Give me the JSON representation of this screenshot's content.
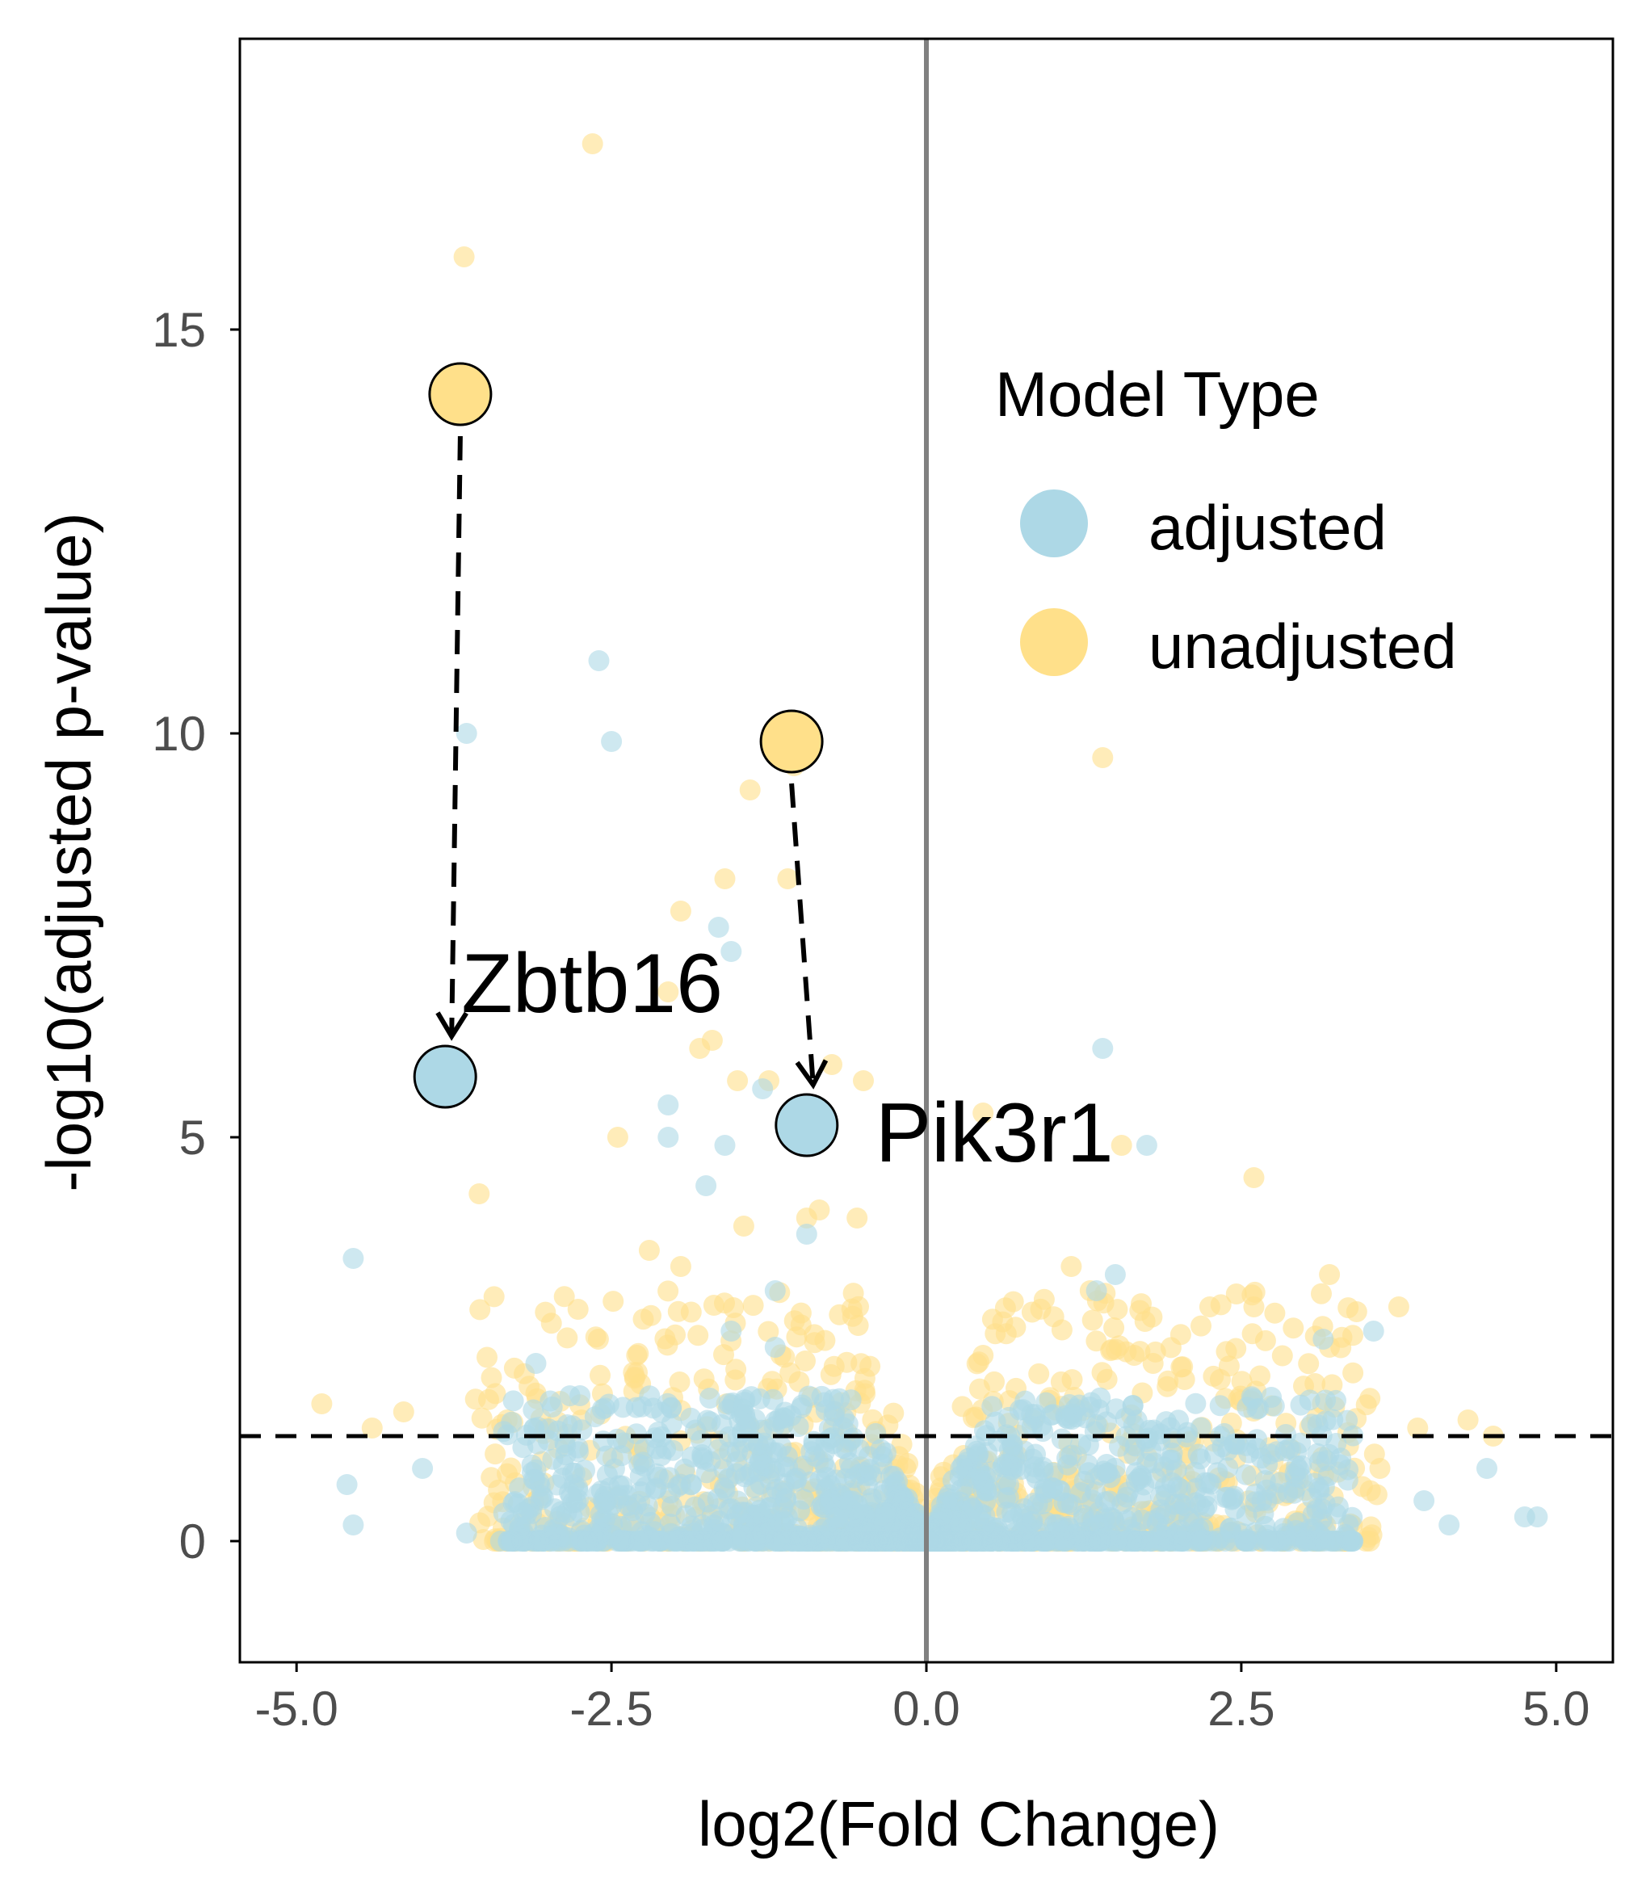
{
  "chart_data": {
    "type": "scatter",
    "title": "",
    "xlabel": "log2(Fold Change)",
    "ylabel": "-log10(adjusted p-value)",
    "xlim": [
      -5.45,
      5.45
    ],
    "ylim": [
      -1.5,
      18.6
    ],
    "x_ticks": [
      -5.0,
      -2.5,
      0.0,
      2.5,
      5.0
    ],
    "x_tick_labels": [
      "-5.0",
      "-2.5",
      "0.0",
      "2.5",
      "5.0"
    ],
    "y_ticks": [
      0,
      5,
      10,
      15
    ],
    "y_tick_labels": [
      "0",
      "5",
      "10",
      "15"
    ],
    "grid": false,
    "legend": {
      "title": "Model Type",
      "placement": "top-right (inside)",
      "entries": [
        {
          "label": "adjusted",
          "color": "#add8e6"
        },
        {
          "label": "unadjusted",
          "color": "#ffe08a"
        }
      ]
    },
    "colors": {
      "adjusted": "#add8e6",
      "unadjusted": "#ffe08a",
      "vline": "#808080",
      "hline": "#000000"
    },
    "reference_lines": {
      "vertical_x": 0.0,
      "horizontal_y": 1.3
    },
    "series": [
      {
        "name": "unadjusted",
        "color": "#ffe08a",
        "points": [
          [
            -2.65,
            17.3
          ],
          [
            -3.67,
            15.9
          ],
          [
            -1.05,
            9.6
          ],
          [
            -1.4,
            9.3
          ],
          [
            -1.1,
            8.2
          ],
          [
            -1.6,
            8.2
          ],
          [
            -1.95,
            7.8
          ],
          [
            -2.05,
            6.8
          ],
          [
            -1.7,
            6.2
          ],
          [
            -1.8,
            6.1
          ],
          [
            -1.5,
            5.7
          ],
          [
            -1.25,
            5.7
          ],
          [
            -0.75,
            5.9
          ],
          [
            -0.5,
            5.7
          ],
          [
            -2.45,
            5.0
          ],
          [
            -3.55,
            4.3
          ],
          [
            1.4,
            9.7
          ],
          [
            0.45,
            5.3
          ],
          [
            1.55,
            4.9
          ],
          [
            2.6,
            4.5
          ],
          [
            -4.8,
            1.7
          ],
          [
            -4.4,
            1.4
          ],
          [
            -4.15,
            1.6
          ],
          [
            -2.2,
            3.6
          ],
          [
            -1.95,
            3.4
          ],
          [
            -0.85,
            4.1
          ],
          [
            -0.55,
            4.0
          ],
          [
            1.15,
            3.4
          ],
          [
            1.3,
            3.1
          ],
          [
            2.25,
            2.9
          ],
          [
            2.6,
            2.9
          ],
          [
            3.2,
            3.3
          ],
          [
            3.75,
            2.9
          ],
          [
            3.2,
            2.4
          ],
          [
            1.65,
            2.3
          ],
          [
            0.45,
            2.3
          ],
          [
            3.9,
            1.4
          ],
          [
            4.3,
            1.5
          ],
          [
            4.5,
            1.3
          ],
          [
            3.6,
            0.9
          ],
          [
            2.05,
            2.0
          ],
          [
            1.8,
            2.2
          ],
          [
            -1.45,
            3.9
          ],
          [
            -0.95,
            4.0
          ],
          [
            -2.3,
            2.3
          ]
        ]
      },
      {
        "name": "adjusted",
        "color": "#add8e6",
        "points": [
          [
            -2.6,
            10.9
          ],
          [
            -3.65,
            10.0
          ],
          [
            -2.5,
            9.9
          ],
          [
            -1.65,
            7.6
          ],
          [
            -1.55,
            7.3
          ],
          [
            -1.3,
            5.6
          ],
          [
            -2.05,
            5.4
          ],
          [
            -2.05,
            5.0
          ],
          [
            -1.6,
            4.9
          ],
          [
            -1.75,
            4.4
          ],
          [
            1.4,
            6.1
          ],
          [
            1.75,
            4.9
          ],
          [
            -4.55,
            3.5
          ],
          [
            -3.1,
            2.2
          ],
          [
            -4.0,
            0.9
          ],
          [
            -4.6,
            0.7
          ],
          [
            -4.55,
            0.2
          ],
          [
            -3.65,
            0.1
          ],
          [
            -2.75,
            1.8
          ],
          [
            -0.95,
            3.8
          ],
          [
            -1.2,
            3.1
          ],
          [
            1.35,
            3.1
          ],
          [
            1.5,
            3.3
          ],
          [
            3.15,
            2.5
          ],
          [
            3.55,
            2.6
          ],
          [
            4.45,
            0.9
          ],
          [
            4.75,
            0.3
          ],
          [
            4.85,
            0.3
          ],
          [
            4.15,
            0.2
          ],
          [
            3.35,
            0.2
          ],
          [
            3.95,
            0.5
          ],
          [
            -1.55,
            2.6
          ],
          [
            -1.2,
            2.4
          ]
        ]
      }
    ],
    "highlighted_genes": [
      {
        "label": "Zbtb16",
        "unadjusted": [
          -3.7,
          14.2
        ],
        "adjusted": [
          -3.82,
          5.75
        ]
      },
      {
        "label": "Pik3r1",
        "unadjusted": [
          -1.07,
          9.9
        ],
        "adjusted": [
          -0.95,
          5.15
        ]
      }
    ]
  }
}
